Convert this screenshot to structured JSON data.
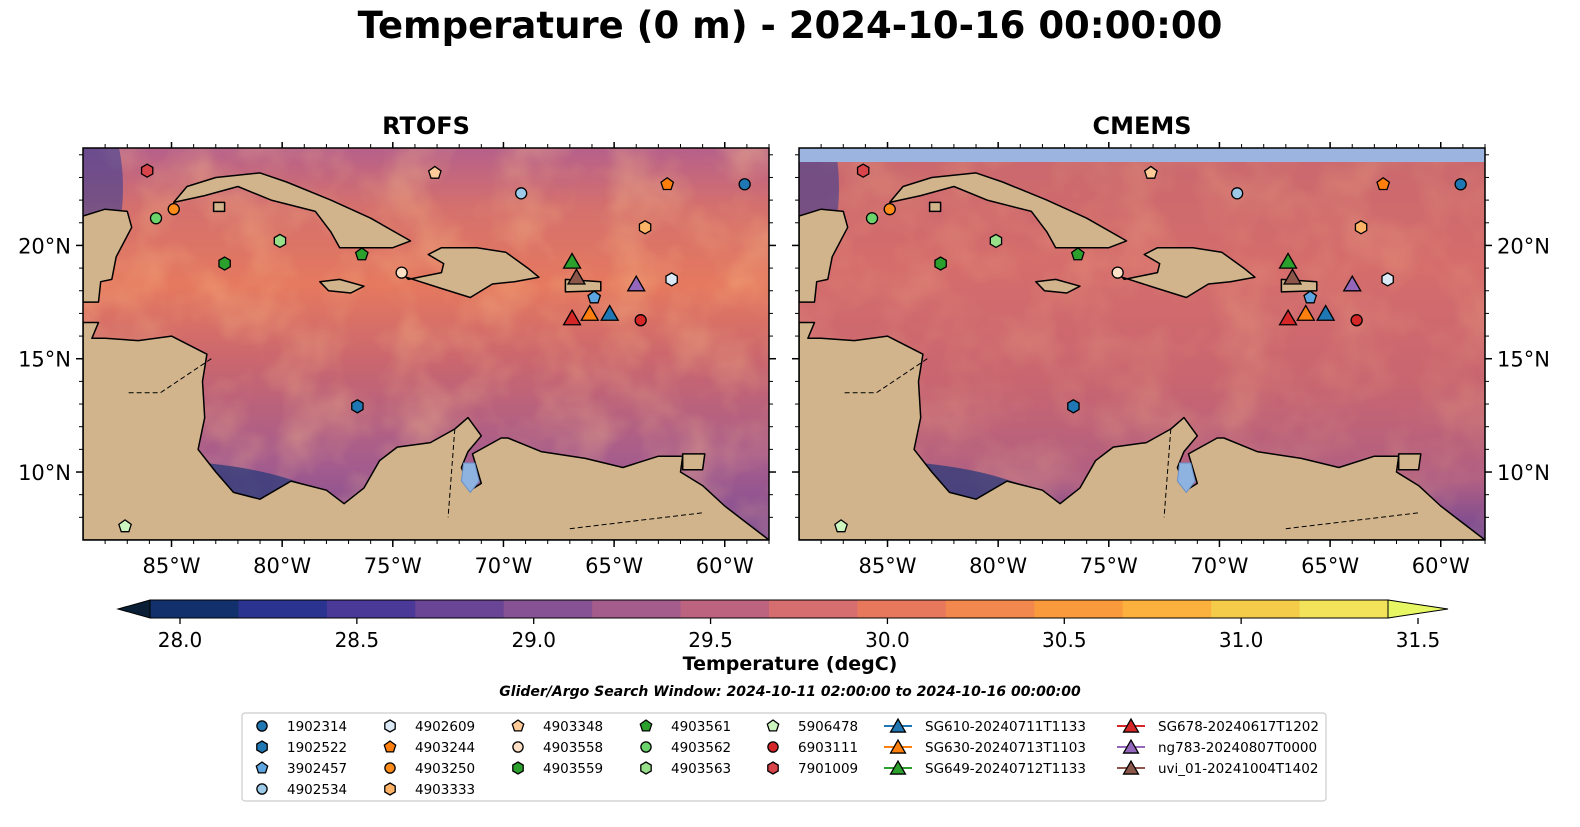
{
  "title": "Temperature (0 m) - 2024-10-16 00:00:00",
  "panels": [
    {
      "name": "RTOFS"
    },
    {
      "name": "CMEMS"
    }
  ],
  "map_axes": {
    "lon_range": [
      -89,
      -58
    ],
    "lat_range": [
      7,
      24.3
    ],
    "lon_ticks": [
      {
        "value": -85,
        "label": "85°W"
      },
      {
        "value": -80,
        "label": "80°W"
      },
      {
        "value": -75,
        "label": "75°W"
      },
      {
        "value": -70,
        "label": "70°W"
      },
      {
        "value": -65,
        "label": "65°W"
      },
      {
        "value": -60,
        "label": "60°W"
      }
    ],
    "lat_ticks": [
      {
        "value": 20,
        "label": "20°N"
      },
      {
        "value": 15,
        "label": "15°N"
      },
      {
        "value": 10,
        "label": "10°N"
      }
    ]
  },
  "colorbar": {
    "label": "Temperature (degC)",
    "min": 28.0,
    "max": 31.5,
    "step": 0.25,
    "ticks": [
      "28.0",
      "28.5",
      "29.0",
      "29.5",
      "30.0",
      "30.5",
      "31.0",
      "31.5"
    ],
    "colors": [
      "#0a1f35",
      "#12306b",
      "#2b3390",
      "#4a3996",
      "#6a4596",
      "#865294",
      "#a35c8b",
      "#bc6380",
      "#d66d6e",
      "#e8785c",
      "#f2884d",
      "#f99a3d",
      "#fcb13e",
      "#f5cc4a",
      "#f3e35a",
      "#e6f763"
    ]
  },
  "search_window": "Glider/Argo Search Window: 2024-10-11 02:00:00 to 2024-10-16 00:00:00",
  "colors": {
    "land": "#d2b48c",
    "ocean_mid": "#c8676f",
    "ocean_cmems": "#c9686e",
    "lake": "#8fb3e0",
    "missing_band": "#9bb4e0"
  },
  "legend_entries": [
    {
      "label": "1902314",
      "marker": "circle",
      "color": "#1f77b4",
      "lon": -59.1,
      "lat": 22.7
    },
    {
      "label": "1902522",
      "marker": "hexagon",
      "color": "#1f77b4",
      "lon": -76.6,
      "lat": 12.9
    },
    {
      "label": "3902457",
      "marker": "pentagon",
      "color": "#5da5e0",
      "lon": -65.9,
      "lat": 17.7
    },
    {
      "label": "4902534",
      "marker": "circle",
      "color": "#9ecae9",
      "lon": -69.2,
      "lat": 22.3
    },
    {
      "label": "4902609",
      "marker": "hexagon",
      "color": "#dbe9f6",
      "lon": -62.4,
      "lat": 18.5
    },
    {
      "label": "4903244",
      "marker": "pentagon",
      "color": "#ff7f0e",
      "lon": -62.6,
      "lat": 22.7
    },
    {
      "label": "4903250",
      "marker": "circle",
      "color": "#ff8c1a",
      "lon": -84.9,
      "lat": 21.6
    },
    {
      "label": "4903333",
      "marker": "hexagon",
      "color": "#ffb366",
      "lon": -63.6,
      "lat": 20.8
    },
    {
      "label": "4903348",
      "marker": "pentagon",
      "color": "#ffcc99",
      "lon": -73.1,
      "lat": 23.2
    },
    {
      "label": "4903558",
      "marker": "circle",
      "color": "#fde0c5",
      "lon": -74.6,
      "lat": 18.8
    },
    {
      "label": "4903559",
      "marker": "hexagon",
      "color": "#2ca02c",
      "lon": -82.6,
      "lat": 19.2
    },
    {
      "label": "4903561",
      "marker": "pentagon",
      "color": "#2ca02c",
      "lon": -76.4,
      "lat": 19.6
    },
    {
      "label": "4903562",
      "marker": "circle",
      "color": "#6bd36b",
      "lon": -85.7,
      "lat": 21.2
    },
    {
      "label": "4903563",
      "marker": "hexagon",
      "color": "#98df8a",
      "lon": -80.1,
      "lat": 20.2
    },
    {
      "label": "5906478",
      "marker": "pentagon",
      "color": "#ccf5c0",
      "lon": -87.1,
      "lat": 7.6
    },
    {
      "label": "6903111",
      "marker": "circle",
      "color": "#d62728",
      "lon": -63.8,
      "lat": 16.7
    },
    {
      "label": "7901009",
      "marker": "hexagon",
      "color": "#d9434a",
      "lon": -86.1,
      "lat": 23.3
    },
    {
      "label": "SG610-20240711T1133",
      "marker": "triangle",
      "color": "#1f77b4",
      "lon": -65.2,
      "lat": 17.0
    },
    {
      "label": "SG630-20240713T1103",
      "marker": "triangle",
      "color": "#ff7f0e",
      "lon": -66.1,
      "lat": 17.0
    },
    {
      "label": "SG649-20240712T1133",
      "marker": "triangle",
      "color": "#2ca02c",
      "lon": -66.9,
      "lat": 19.3
    },
    {
      "label": "SG678-20240617T1202",
      "marker": "triangle",
      "color": "#d62728",
      "lon": -66.9,
      "lat": 16.8
    },
    {
      "label": "ng783-20240807T0000",
      "marker": "triangle",
      "color": "#9467bd",
      "lon": -64.0,
      "lat": 18.3
    },
    {
      "label": "uvi_01-20241004T1402",
      "marker": "triangle",
      "color": "#8c564b",
      "lon": -66.7,
      "lat": 18.6
    }
  ]
}
